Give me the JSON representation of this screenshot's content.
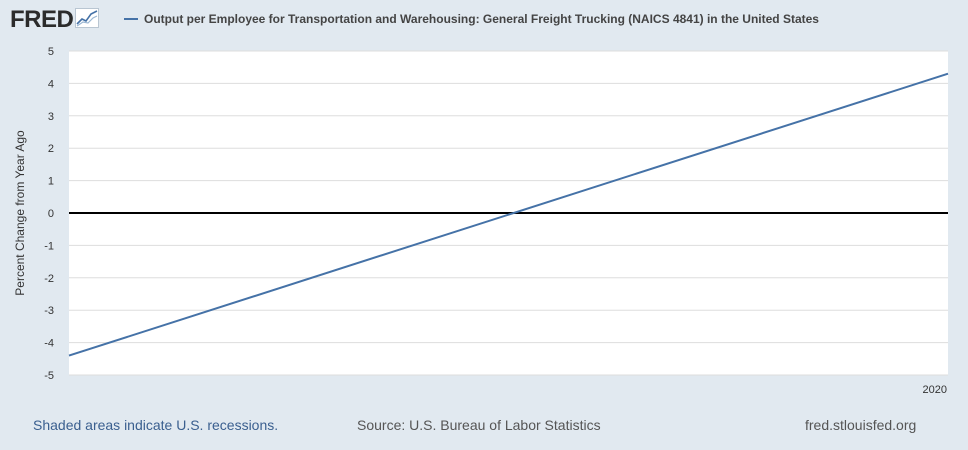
{
  "header": {
    "logo_text": "FRED",
    "logo_icon": "sparkline-chart-icon",
    "legend_label": "Output per Employee for Transportation and Warehousing: General Freight Trucking (NAICS 4841) in the United States",
    "legend_color": "#4572a7"
  },
  "footer": {
    "recession_note": "Shaded areas indicate U.S. recessions.",
    "source": "Source: U.S. Bureau of Labor Statistics",
    "site": "fred.stlouisfed.org"
  },
  "colors": {
    "background": "#e1e9f0",
    "plot_background": "#ffffff",
    "series": "#4572a7",
    "zero_line": "#000000",
    "grid": "#dddddd"
  },
  "chart_data": {
    "type": "line",
    "title": "Output per Employee for Transportation and Warehousing: General Freight Trucking (NAICS 4841) in the United States",
    "ylabel": "Percent Change from Year Ago",
    "xlabel": "",
    "ylim": [
      -5,
      5
    ],
    "yticks": [
      5,
      4,
      3,
      2,
      1,
      0,
      -1,
      -2,
      -3,
      -4,
      -5
    ],
    "xlim": [
      "2019-01-01",
      "2020-01-01"
    ],
    "xtick_labels": [
      {
        "date": "2020-01-01",
        "label": "2020"
      }
    ],
    "grid": true,
    "zero_line": true,
    "series": [
      {
        "name": "Output per Employee for Transportation and Warehousing: General Freight Trucking (NAICS 4841) in the United States",
        "x": [
          "2019-01-01",
          "2020-01-01"
        ],
        "values": [
          -4.4,
          4.3
        ]
      }
    ]
  }
}
